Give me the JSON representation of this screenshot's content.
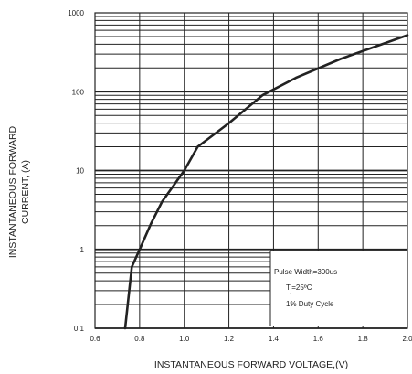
{
  "chart_data": {
    "type": "line",
    "title": "",
    "xlabel": "INSTANTANEOUS FORWARD VOLTAGE,(V)",
    "ylabel_line1": "INSTANTANEOUS FORWARD",
    "ylabel_line2": "CURRENT,  (A)",
    "xscale": "linear",
    "yscale": "log",
    "xlim": [
      0.6,
      2.0
    ],
    "ylim": [
      0.1,
      1000
    ],
    "x_ticks": [
      "0.6",
      "0.8",
      "1.0",
      "1.2",
      "1.4",
      "1.6",
      "1.8",
      "2.0"
    ],
    "y_ticks": [
      "0.1",
      "1",
      "10",
      "100",
      "1000"
    ],
    "grid": true,
    "series": [
      {
        "x": [
          0.735,
          0.765,
          0.8,
          0.85,
          0.9,
          1.0,
          1.06,
          1.2,
          1.35,
          1.5,
          1.7,
          2.0
        ],
        "y": [
          0.1,
          0.6,
          1.0,
          2.1,
          4.0,
          10.0,
          20.0,
          40.0,
          90.0,
          150.0,
          260.0,
          520.0
        ]
      }
    ],
    "annotation": {
      "line1": "Pulse Width=300us",
      "line2": "T",
      "line2_sub": "j",
      "line2_rest": "=25ºC",
      "line3": "1% Duty Cycle"
    },
    "colors": {
      "curve": "#222222",
      "grid": "#222222",
      "background": "#ffffff"
    }
  }
}
